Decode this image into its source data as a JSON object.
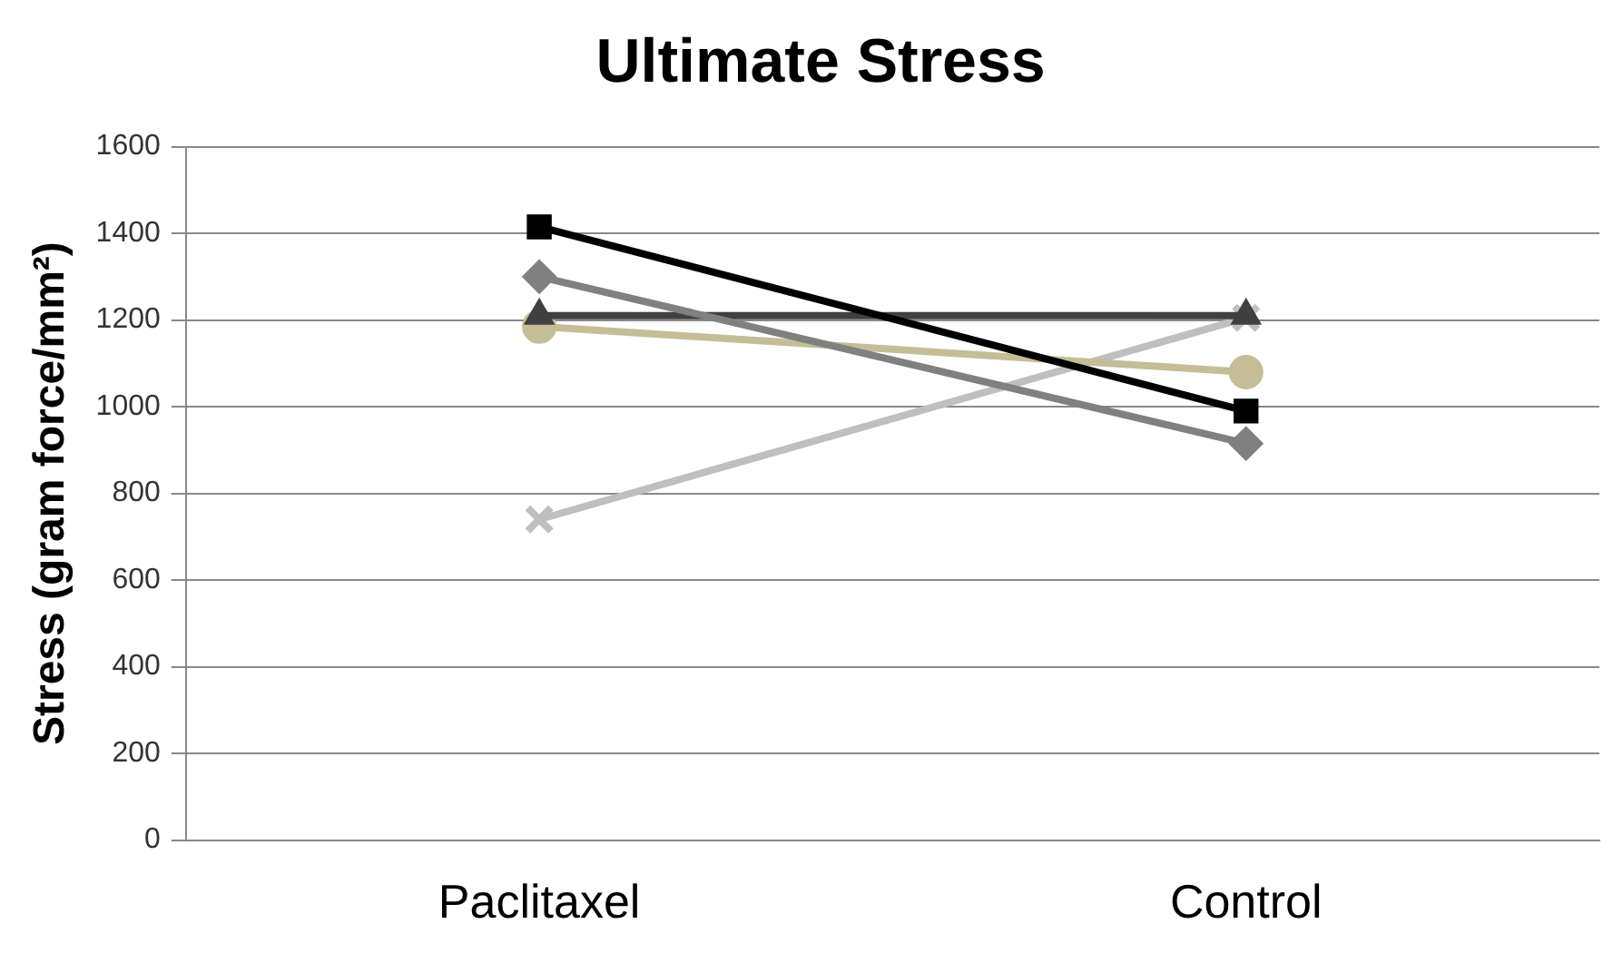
{
  "chart_data": {
    "type": "line",
    "title": "Ultimate Stress",
    "ylabel": "Stress (gram force/mm²)",
    "categories": [
      "Paclitaxel",
      "Control"
    ],
    "series": [
      {
        "color": "#000000",
        "marker": "square",
        "values": [
          1415,
          990
        ]
      },
      {
        "color": "#808080",
        "marker": "diamond",
        "values": [
          1300,
          915
        ]
      },
      {
        "color": "#404040",
        "marker": "triangle",
        "values": [
          1210,
          1210
        ]
      },
      {
        "color": "#c4bd97",
        "marker": "circle",
        "values": [
          1185,
          1080
        ]
      },
      {
        "color": "#bfbfbf",
        "marker": "cross",
        "values": [
          740,
          1205
        ]
      }
    ],
    "ylim": [
      0,
      1600
    ],
    "yticks": [
      0,
      200,
      400,
      600,
      800,
      1000,
      1200,
      1400,
      1600
    ],
    "grid": "y",
    "legend": false,
    "line_style": "solid"
  }
}
